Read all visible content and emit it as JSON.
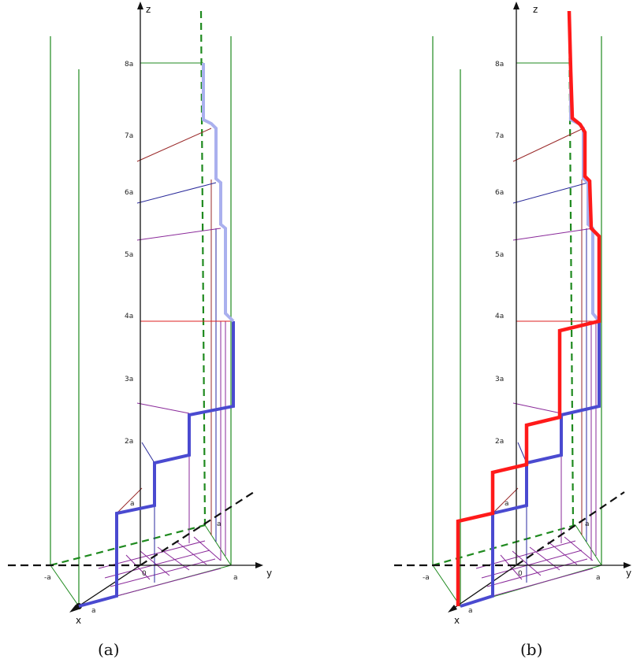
{
  "panels": [
    {
      "id": "a",
      "caption": "(a)",
      "axis_labels": {
        "z": "z",
        "y": "y",
        "x": "x"
      },
      "z_ticks": [
        "8a",
        "7a",
        "6a",
        "5a",
        "4a",
        "3a",
        "2a",
        "a"
      ],
      "base_labels": {
        "neg_a": "-a",
        "zero": "0",
        "y_a": "a",
        "x_a": "a",
        "grid_a": "a"
      }
    },
    {
      "id": "b",
      "caption": "(b)",
      "axis_labels": {
        "z": "z",
        "y": "y",
        "x": "x"
      },
      "z_ticks": [
        "8a",
        "7a",
        "6a",
        "5a",
        "4a",
        "3a",
        "2a",
        "a"
      ],
      "base_labels": {
        "neg_a": "-a",
        "zero": "0",
        "y_a": "a",
        "x_a": "a",
        "grid_a": "a"
      }
    }
  ],
  "colors": {
    "axis": "#111111",
    "guide_green": "#1f8a1f",
    "dashed_green": "#1f8a1f",
    "staircase_blue": "#4a4ad0",
    "staircase_light": "#aab0ee",
    "staircase_red": "#ff1a1a",
    "purple": "#8a2a9a",
    "navy": "#2a2a9a",
    "maroon": "#9a2a2a",
    "red_thin": "#dd2222"
  }
}
